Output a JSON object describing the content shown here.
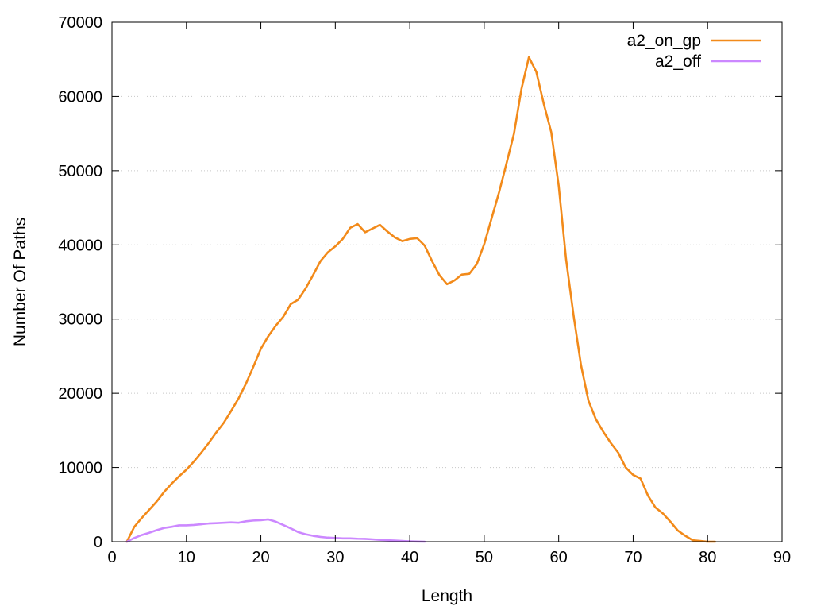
{
  "chart_data": {
    "type": "line",
    "xlabel": "Length",
    "ylabel": "Number Of Paths",
    "xlim": [
      0,
      90
    ],
    "ylim": [
      0,
      70000
    ],
    "xticks": [
      0,
      10,
      20,
      30,
      40,
      50,
      60,
      70,
      80,
      90
    ],
    "yticks": [
      0,
      10000,
      20000,
      30000,
      40000,
      50000,
      60000,
      70000
    ],
    "grid": "horizontal-dotted",
    "legend_position": "top-right",
    "series": [
      {
        "name": "a2_on_gp",
        "color": "#f28a1a",
        "x": [
          2,
          3,
          4,
          5,
          6,
          7,
          8,
          9,
          10,
          11,
          12,
          13,
          14,
          15,
          16,
          17,
          18,
          19,
          20,
          21,
          22,
          23,
          24,
          25,
          26,
          27,
          28,
          29,
          30,
          31,
          32,
          33,
          34,
          35,
          36,
          37,
          38,
          39,
          40,
          41,
          42,
          43,
          44,
          45,
          46,
          47,
          48,
          49,
          50,
          51,
          52,
          53,
          54,
          55,
          56,
          57,
          58,
          59,
          60,
          61,
          62,
          63,
          64,
          65,
          66,
          67,
          68,
          69,
          70,
          71,
          72,
          73,
          74,
          75,
          76,
          77,
          78,
          79,
          80,
          81
        ],
        "y": [
          0,
          2000,
          3200,
          4300,
          5400,
          6700,
          7800,
          8800,
          9700,
          10800,
          12000,
          13300,
          14700,
          16000,
          17600,
          19300,
          21300,
          23600,
          26000,
          27700,
          29100,
          30300,
          32000,
          32600,
          34100,
          35900,
          37800,
          39000,
          39800,
          40800,
          42300,
          42800,
          41700,
          42200,
          42700,
          41800,
          41000,
          40500,
          40800,
          40900,
          39900,
          37800,
          35900,
          34700,
          35200,
          36000,
          36100,
          37400,
          40100,
          43600,
          47100,
          51000,
          55000,
          61000,
          65300,
          63300,
          59000,
          55200,
          48000,
          38000,
          30500,
          23800,
          19000,
          16500,
          14800,
          13300,
          12000,
          10000,
          9000,
          8500,
          6200,
          4600,
          3800,
          2700,
          1500,
          800,
          200,
          100,
          0,
          0
        ]
      },
      {
        "name": "a2_off",
        "color": "#cc88ff",
        "x": [
          2,
          3,
          4,
          5,
          6,
          7,
          8,
          9,
          10,
          11,
          12,
          13,
          14,
          15,
          16,
          17,
          18,
          19,
          20,
          21,
          22,
          23,
          24,
          25,
          26,
          27,
          28,
          29,
          30,
          31,
          32,
          33,
          34,
          35,
          36,
          37,
          38,
          39,
          40,
          41,
          42
        ],
        "y": [
          0,
          500,
          900,
          1200,
          1550,
          1850,
          2000,
          2200,
          2200,
          2250,
          2350,
          2450,
          2500,
          2550,
          2600,
          2550,
          2750,
          2850,
          2900,
          3000,
          2700,
          2250,
          1800,
          1300,
          1000,
          800,
          650,
          550,
          500,
          450,
          450,
          400,
          380,
          320,
          250,
          200,
          150,
          100,
          50,
          20,
          0
        ]
      }
    ]
  }
}
